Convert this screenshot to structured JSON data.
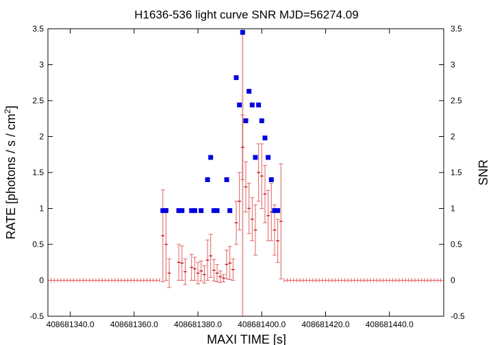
{
  "chart_data": {
    "type": "scatter",
    "title": "H1636-536 light curve  SNR MJD=56274.09",
    "xlabel": "MAXI TIME [s]",
    "ylabel_left": "RATE [photons / s / cm",
    "ylabel_left_sup": "2",
    "ylabel_left_close": "]",
    "ylabel_right": "SNR",
    "xlim": [
      408681333.0,
      408681457.0
    ],
    "ylim": [
      -0.5,
      3.5
    ],
    "x_ticks": [
      408681340,
      408681360,
      408681380,
      408681400,
      408681420,
      408681440
    ],
    "x_tick_labels": [
      "408681340.0",
      "408681360.0",
      "408681380.0",
      "408681400.0",
      "408681420.0",
      "408681440.0"
    ],
    "y_ticks": [
      -0.5,
      0,
      0.5,
      1,
      1.5,
      2,
      2.5,
      3,
      3.5
    ],
    "y_tick_labels": [
      "-0.5",
      "0",
      "0.5",
      "1",
      "1.5",
      "2",
      "2.5",
      "3",
      "3.5"
    ],
    "y2_tick_labels": [
      "-0.5",
      "0",
      "0.5",
      "1",
      "1.5",
      "2",
      "2.5",
      "3",
      "3.5"
    ],
    "vertical_line_x": 408681394.0,
    "bin_width": 1.0,
    "colors": {
      "rate": "#e06060",
      "rate_bar": "#bb2222",
      "snr": "#0000dd",
      "vline": "#e8a0a0",
      "frame": "#000000"
    },
    "series": [
      {
        "name": "",
        "kind": "rate-with-errors",
        "x": [
          408681369,
          408681370,
          408681371,
          408681374,
          408681375,
          408681376,
          408681378,
          408681379,
          408681380,
          408681381,
          408681382,
          408681383,
          408681384,
          408681385,
          408681386,
          408681387,
          408681388,
          408681389,
          408681390,
          408681391,
          408681392,
          408681393,
          408681394,
          408681395,
          408681396,
          408681397,
          408681398,
          408681399,
          408681400,
          408681401,
          408681402,
          408681403,
          408681404,
          408681405,
          408681406
        ],
        "y": [
          0.62,
          0.5,
          0.1,
          0.25,
          0.24,
          0.12,
          0.18,
          0.16,
          0.1,
          0.13,
          0.08,
          0.28,
          0.34,
          0.14,
          0.1,
          0.05,
          0.03,
          0.22,
          0.24,
          0.15,
          0.8,
          1.1,
          1.85,
          1.3,
          1.0,
          0.85,
          0.7,
          1.5,
          1.45,
          1.2,
          0.9,
          0.95,
          0.7,
          0.55,
          0.82
        ],
        "err": [
          0.64,
          0.5,
          0.2,
          0.25,
          0.24,
          0.18,
          0.18,
          0.16,
          0.15,
          0.14,
          0.12,
          0.28,
          0.3,
          0.15,
          0.12,
          0.08,
          0.05,
          0.2,
          0.23,
          0.15,
          0.3,
          0.4,
          0.45,
          0.35,
          0.35,
          0.3,
          0.35,
          0.4,
          0.45,
          0.4,
          0.35,
          0.4,
          0.35,
          0.3,
          0.8
        ]
      },
      {
        "name": "",
        "kind": "snr",
        "x": [
          408681369,
          408681370,
          408681374,
          408681375,
          408681378,
          408681379,
          408681381,
          408681383,
          408681384,
          408681385,
          408681386,
          408681389,
          408681390,
          408681392,
          408681393,
          408681394,
          408681395,
          408681396,
          408681397,
          408681398,
          408681399,
          408681400,
          408681401,
          408681402,
          408681403,
          408681404,
          408681405
        ],
        "y": [
          0.97,
          0.97,
          0.97,
          0.97,
          0.97,
          0.97,
          0.97,
          1.4,
          1.71,
          0.97,
          0.97,
          1.4,
          0.97,
          2.82,
          2.44,
          3.45,
          2.22,
          2.63,
          2.44,
          1.71,
          2.44,
          2.22,
          1.98,
          1.71,
          1.4,
          0.97,
          0.97
        ]
      }
    ],
    "zero_baseline_ranges": [
      [
        408681333,
        408681368
      ],
      [
        408681407,
        408681457
      ]
    ]
  }
}
